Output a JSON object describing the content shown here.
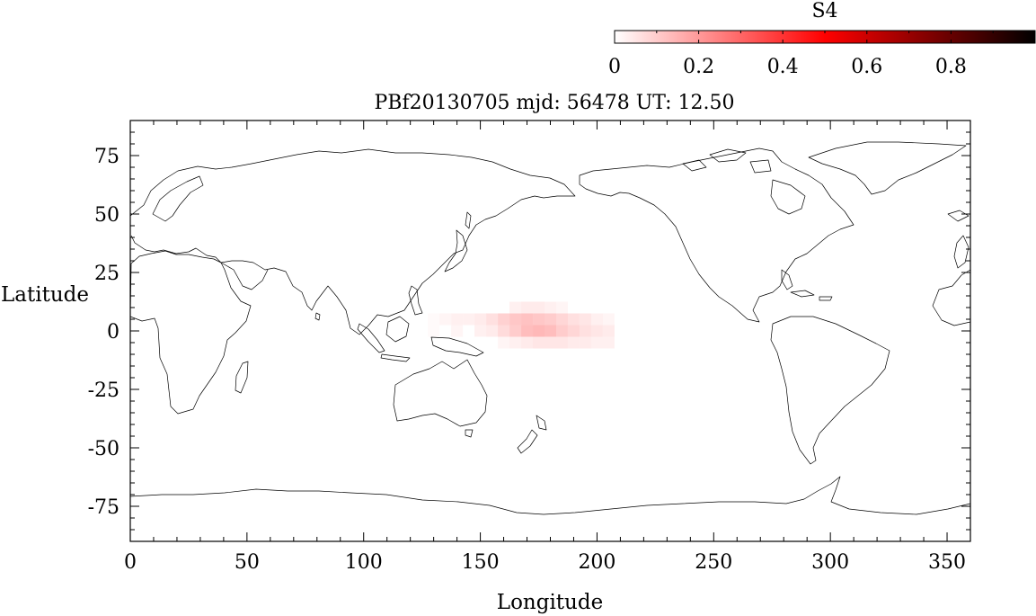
{
  "title": "PBf20130705  mjd: 56478  UT:  12.50",
  "colorbar": {
    "label": "S4",
    "range": [
      0,
      1
    ],
    "ticks": [
      "0",
      "0.2",
      "0.4",
      "0.6",
      "0.8"
    ],
    "tick_values": [
      0,
      0.2,
      0.4,
      0.6,
      0.8
    ],
    "colors": [
      "#ffffff",
      "#ff0000",
      "#000000"
    ]
  },
  "chart_data": {
    "type": "heatmap",
    "title": "PBf20130705  mjd: 56478  UT:  12.50",
    "xlabel": "Longitude",
    "ylabel": "Latitude",
    "xlim": [
      0,
      360
    ],
    "ylim": [
      -90,
      90
    ],
    "x_ticks": [
      "0",
      "50",
      "100",
      "150",
      "200",
      "250",
      "300",
      "350"
    ],
    "x_tick_values": [
      0,
      50,
      100,
      150,
      200,
      250,
      300,
      350
    ],
    "y_ticks": [
      "75",
      "50",
      "25",
      "0",
      "-25",
      "-50",
      "-75"
    ],
    "y_tick_values": [
      75,
      50,
      25,
      0,
      -25,
      -50,
      -75
    ],
    "grid": false,
    "value_label": "S4",
    "cells": [
      {
        "lon": 130,
        "lat": 5,
        "value": 0.01
      },
      {
        "lon": 135,
        "lat": 5,
        "value": 0.02
      },
      {
        "lon": 140,
        "lat": 5,
        "value": 0.03
      },
      {
        "lon": 145,
        "lat": 5,
        "value": 0.03
      },
      {
        "lon": 150,
        "lat": 5,
        "value": 0.04
      },
      {
        "lon": 155,
        "lat": 5,
        "value": 0.06
      },
      {
        "lon": 160,
        "lat": 5,
        "value": 0.09
      },
      {
        "lon": 165,
        "lat": 5,
        "value": 0.11
      },
      {
        "lon": 170,
        "lat": 5,
        "value": 0.12
      },
      {
        "lon": 175,
        "lat": 5,
        "value": 0.11
      },
      {
        "lon": 180,
        "lat": 5,
        "value": 0.1
      },
      {
        "lon": 185,
        "lat": 5,
        "value": 0.08
      },
      {
        "lon": 190,
        "lat": 5,
        "value": 0.06
      },
      {
        "lon": 195,
        "lat": 5,
        "value": 0.05
      },
      {
        "lon": 200,
        "lat": 5,
        "value": 0.03
      },
      {
        "lon": 205,
        "lat": 5,
        "value": 0.02
      },
      {
        "lon": 130,
        "lat": 0,
        "value": 0.01
      },
      {
        "lon": 140,
        "lat": 0,
        "value": 0.02
      },
      {
        "lon": 150,
        "lat": 0,
        "value": 0.03
      },
      {
        "lon": 155,
        "lat": 0,
        "value": 0.04
      },
      {
        "lon": 160,
        "lat": 0,
        "value": 0.07
      },
      {
        "lon": 165,
        "lat": 0,
        "value": 0.1
      },
      {
        "lon": 170,
        "lat": 0,
        "value": 0.13
      },
      {
        "lon": 175,
        "lat": 0,
        "value": 0.14
      },
      {
        "lon": 180,
        "lat": 0,
        "value": 0.13
      },
      {
        "lon": 185,
        "lat": 0,
        "value": 0.1
      },
      {
        "lon": 190,
        "lat": 0,
        "value": 0.08
      },
      {
        "lon": 195,
        "lat": 0,
        "value": 0.06
      },
      {
        "lon": 200,
        "lat": 0,
        "value": 0.05
      },
      {
        "lon": 205,
        "lat": 0,
        "value": 0.04
      },
      {
        "lon": 160,
        "lat": -5,
        "value": 0.02
      },
      {
        "lon": 165,
        "lat": -5,
        "value": 0.03
      },
      {
        "lon": 170,
        "lat": -5,
        "value": 0.04
      },
      {
        "lon": 175,
        "lat": -5,
        "value": 0.05
      },
      {
        "lon": 180,
        "lat": -5,
        "value": 0.05
      },
      {
        "lon": 185,
        "lat": -5,
        "value": 0.05
      },
      {
        "lon": 190,
        "lat": -5,
        "value": 0.04
      },
      {
        "lon": 195,
        "lat": -5,
        "value": 0.04
      },
      {
        "lon": 200,
        "lat": -5,
        "value": 0.03
      },
      {
        "lon": 205,
        "lat": -5,
        "value": 0.03
      },
      {
        "lon": 165,
        "lat": 10,
        "value": 0.03
      },
      {
        "lon": 170,
        "lat": 10,
        "value": 0.04
      },
      {
        "lon": 175,
        "lat": 10,
        "value": 0.04
      },
      {
        "lon": 180,
        "lat": 10,
        "value": 0.03
      },
      {
        "lon": 185,
        "lat": 10,
        "value": 0.02
      }
    ]
  }
}
